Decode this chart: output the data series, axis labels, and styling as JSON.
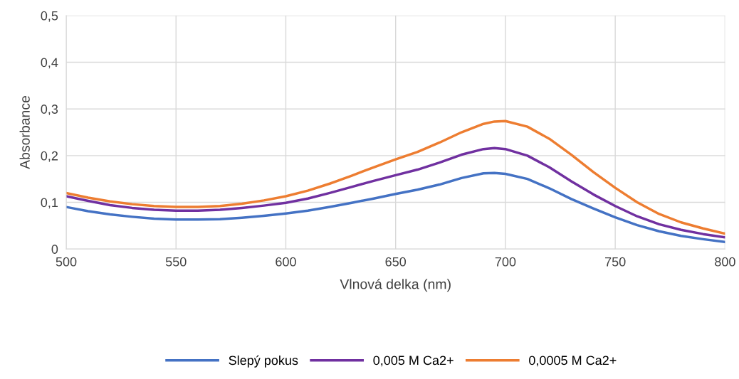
{
  "chart_data": {
    "type": "line",
    "xlabel": "Vlnová delka (nm)",
    "ylabel": "Absorbance",
    "xlim": [
      500,
      800
    ],
    "xticks": [
      500,
      550,
      600,
      650,
      700,
      750,
      800
    ],
    "ylim": [
      0,
      0.5
    ],
    "yticks": [
      0,
      {
        "value": 0.1,
        "label": "0,1"
      },
      {
        "value": 0.2,
        "label": "0,2"
      },
      {
        "value": 0.3,
        "label": "0,3"
      },
      {
        "value": 0.4,
        "label": "0,4"
      },
      {
        "value": 0.5,
        "label": "0,5"
      }
    ],
    "grid": true,
    "legend": "bottom",
    "marker": "none",
    "line_style": "solid",
    "x": [
      500,
      510,
      520,
      530,
      540,
      550,
      560,
      570,
      580,
      590,
      600,
      610,
      620,
      630,
      640,
      650,
      660,
      670,
      680,
      690,
      695,
      700,
      710,
      720,
      730,
      740,
      750,
      760,
      770,
      780,
      790,
      800
    ],
    "series": [
      {
        "name": "Slepý pokus",
        "color": "#4472c4",
        "values": [
          0.09,
          0.081,
          0.074,
          0.069,
          0.065,
          0.063,
          0.063,
          0.064,
          0.067,
          0.071,
          0.076,
          0.082,
          0.09,
          0.099,
          0.108,
          0.118,
          0.127,
          0.138,
          0.152,
          0.162,
          0.163,
          0.161,
          0.15,
          0.13,
          0.107,
          0.087,
          0.068,
          0.051,
          0.038,
          0.028,
          0.021,
          0.015
        ]
      },
      {
        "name": "0,005 M Ca2+",
        "color": "#7030a0",
        "values": [
          0.113,
          0.103,
          0.094,
          0.088,
          0.084,
          0.082,
          0.082,
          0.084,
          0.088,
          0.093,
          0.099,
          0.108,
          0.12,
          0.133,
          0.146,
          0.158,
          0.17,
          0.185,
          0.202,
          0.214,
          0.216,
          0.214,
          0.2,
          0.175,
          0.145,
          0.117,
          0.092,
          0.07,
          0.053,
          0.041,
          0.032,
          0.025
        ]
      },
      {
        "name": "0,0005 M Ca2+",
        "color": "#ed7d31",
        "values": [
          0.12,
          0.11,
          0.102,
          0.096,
          0.092,
          0.09,
          0.09,
          0.092,
          0.097,
          0.104,
          0.113,
          0.125,
          0.14,
          0.157,
          0.175,
          0.192,
          0.208,
          0.228,
          0.25,
          0.268,
          0.273,
          0.274,
          0.262,
          0.236,
          0.202,
          0.165,
          0.131,
          0.1,
          0.075,
          0.057,
          0.044,
          0.033
        ]
      }
    ]
  }
}
